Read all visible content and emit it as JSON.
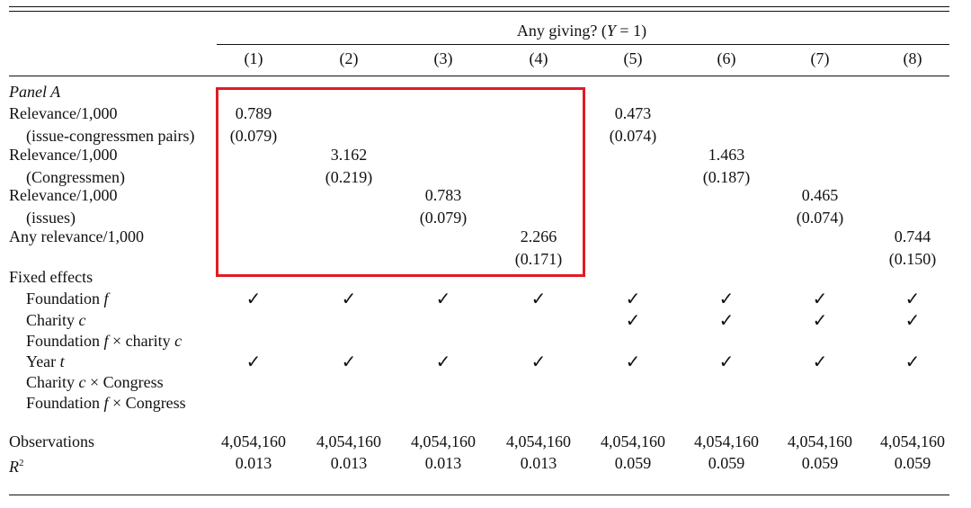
{
  "colors": {
    "highlight": "#e01b24",
    "rule": "#111111"
  },
  "header": {
    "title_prefix": "Any giving? (",
    "title_var": "Y",
    "title_suffix": " = 1)",
    "columns": [
      "(1)",
      "(2)",
      "(3)",
      "(4)",
      "(5)",
      "(6)",
      "(7)",
      "(8)"
    ]
  },
  "panel_label": "Panel A",
  "rows": [
    {
      "label": "Relevance/1,000",
      "sublabel": "(issue-congressmen pairs)",
      "cells": [
        {
          "col": 0,
          "coef": "0.789",
          "se": "(0.079)"
        },
        {
          "col": 4,
          "coef": "0.473",
          "se": "(0.074)"
        }
      ]
    },
    {
      "label": "Relevance/1,000",
      "sublabel": "(Congressmen)",
      "cells": [
        {
          "col": 1,
          "coef": "3.162",
          "se": "(0.219)"
        },
        {
          "col": 5,
          "coef": "1.463",
          "se": "(0.187)"
        }
      ]
    },
    {
      "label": "Relevance/1,000",
      "sublabel": "(issues)",
      "cells": [
        {
          "col": 2,
          "coef": "0.783",
          "se": "(0.079)"
        },
        {
          "col": 6,
          "coef": "0.465",
          "se": "(0.074)"
        }
      ]
    },
    {
      "label": "Any relevance/1,000",
      "sublabel": "",
      "cells": [
        {
          "col": 3,
          "coef": "2.266",
          "se": "(0.171)"
        },
        {
          "col": 7,
          "coef": "0.744",
          "se": "(0.150)"
        }
      ]
    }
  ],
  "fixed_effects": {
    "title": "Fixed effects",
    "check_symbol": "✓",
    "items": [
      {
        "parts": [
          [
            "Foundation ",
            ""
          ],
          [
            "f",
            "i"
          ]
        ],
        "checks": [
          true,
          true,
          true,
          true,
          true,
          true,
          true,
          true
        ]
      },
      {
        "parts": [
          [
            "Charity ",
            ""
          ],
          [
            "c",
            "i"
          ]
        ],
        "checks": [
          false,
          false,
          false,
          false,
          true,
          true,
          true,
          true
        ]
      },
      {
        "parts": [
          [
            "Foundation ",
            ""
          ],
          [
            "f",
            "i"
          ],
          [
            " × charity ",
            ""
          ],
          [
            "c",
            "i"
          ]
        ],
        "checks": [
          false,
          false,
          false,
          false,
          false,
          false,
          false,
          false
        ]
      },
      {
        "parts": [
          [
            "Year ",
            ""
          ],
          [
            "t",
            "i"
          ]
        ],
        "checks": [
          true,
          true,
          true,
          true,
          true,
          true,
          true,
          true
        ]
      },
      {
        "parts": [
          [
            "Charity ",
            ""
          ],
          [
            "c",
            "i"
          ],
          [
            " × Congress",
            ""
          ]
        ],
        "checks": [
          false,
          false,
          false,
          false,
          false,
          false,
          false,
          false
        ]
      },
      {
        "parts": [
          [
            "Foundation ",
            ""
          ],
          [
            "f",
            "i"
          ],
          [
            " × Congress",
            ""
          ]
        ],
        "checks": [
          false,
          false,
          false,
          false,
          false,
          false,
          false,
          false
        ]
      }
    ]
  },
  "stats": {
    "observations_label": "Observations",
    "observations": [
      "4,054,160",
      "4,054,160",
      "4,054,160",
      "4,054,160",
      "4,054,160",
      "4,054,160",
      "4,054,160",
      "4,054,160"
    ],
    "r2_label": "R",
    "r2_sup": "2",
    "r2": [
      "0.013",
      "0.013",
      "0.013",
      "0.013",
      "0.059",
      "0.059",
      "0.059",
      "0.059"
    ]
  }
}
